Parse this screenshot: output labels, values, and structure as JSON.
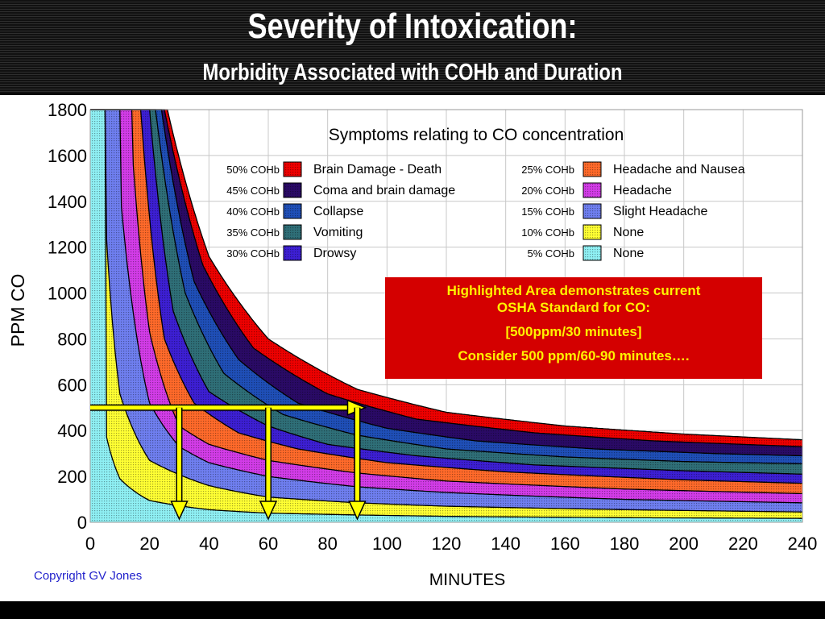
{
  "header": {
    "title": "Severity of Intoxication:",
    "subtitle": "Morbidity Associated with COHb and Duration"
  },
  "osha_box": {
    "line1": "Highlighted Area demonstrates current",
    "line2": "OSHA Standard for CO:",
    "line3": "[500ppm/30 minutes]",
    "line4": "Consider 500 ppm/60-90 minutes…."
  },
  "copyright": "Copyright GV Jones",
  "colors": {
    "box_background": "#d40000",
    "box_text": "#fff200",
    "arrow": "#ffff00",
    "header_background": "#1a1a1a"
  },
  "chart_data": {
    "type": "area",
    "title": "Symptoms relating to CO concentration",
    "xlabel": "MINUTES",
    "ylabel": "PPM CO",
    "xlim": [
      0,
      240
    ],
    "ylim": [
      0,
      1800
    ],
    "x_ticks": [
      "0",
      "20",
      "40",
      "60",
      "80",
      "100",
      "120",
      "140",
      "160",
      "180",
      "200",
      "220",
      "240"
    ],
    "y_ticks": [
      "0",
      "200",
      "400",
      "600",
      "800",
      "1000",
      "1200",
      "1400",
      "1600",
      "1800"
    ],
    "grid": true,
    "legend_left": [
      {
        "cohb": "50% COHb",
        "label": "Brain Damage - Death",
        "color": "#ee0000"
      },
      {
        "cohb": "45% COHb",
        "label": "Coma and brain damage",
        "color": "#2a0a66"
      },
      {
        "cohb": "40% COHb",
        "label": "Collapse",
        "color": "#1f4fb8"
      },
      {
        "cohb": "35% COHb",
        "label": "Vomiting",
        "color": "#2f6f78"
      },
      {
        "cohb": "30% COHb",
        "label": "Drowsy",
        "color": "#3d1fd4"
      }
    ],
    "legend_right": [
      {
        "cohb": "25% COHb",
        "label": "Headache and Nausea",
        "color": "#ff6a2a"
      },
      {
        "cohb": "20% COHb",
        "label": "Headache",
        "color": "#d33ce8"
      },
      {
        "cohb": "15% COHb",
        "label": "Slight Headache",
        "color": "#6f7ff0"
      },
      {
        "cohb": "10% COHb",
        "label": "None",
        "color": "#ffff33"
      },
      {
        "cohb": "5% COHb",
        "label": "None",
        "color": "#8ff0f4"
      }
    ],
    "series": [
      {
        "name": "5% COHb",
        "asymptote": 10,
        "points": [
          [
            5,
            400
          ],
          [
            10,
            190
          ],
          [
            20,
            95
          ],
          [
            40,
            55
          ],
          [
            60,
            40
          ],
          [
            90,
            32
          ],
          [
            120,
            26
          ],
          [
            180,
            20
          ],
          [
            240,
            17
          ]
        ],
        "color": "#8ff0f4"
      },
      {
        "name": "10% COHb",
        "asymptote": 25,
        "points": [
          [
            5,
            1350
          ],
          [
            10,
            560
          ],
          [
            20,
            270
          ],
          [
            40,
            160
          ],
          [
            60,
            110
          ],
          [
            90,
            85
          ],
          [
            120,
            70
          ],
          [
            180,
            55
          ],
          [
            240,
            45
          ]
        ],
        "color": "#ffff33"
      },
      {
        "name": "15% COHb",
        "asymptote": 45,
        "points": [
          [
            10,
            1450
          ],
          [
            20,
            520
          ],
          [
            30,
            330
          ],
          [
            40,
            260
          ],
          [
            60,
            200
          ],
          [
            90,
            155
          ],
          [
            120,
            130
          ],
          [
            180,
            100
          ],
          [
            240,
            85
          ]
        ],
        "color": "#6f7ff0"
      },
      {
        "name": "20% COHb",
        "asymptote": 70,
        "points": [
          [
            14,
            1650
          ],
          [
            20,
            830
          ],
          [
            30,
            420
          ],
          [
            40,
            340
          ],
          [
            60,
            270
          ],
          [
            90,
            215
          ],
          [
            120,
            180
          ],
          [
            180,
            145
          ],
          [
            240,
            125
          ]
        ],
        "color": "#d33ce8"
      },
      {
        "name": "25% COHb",
        "asymptote": 100,
        "points": [
          [
            17,
            1800
          ],
          [
            25,
            800
          ],
          [
            35,
            520
          ],
          [
            50,
            390
          ],
          [
            70,
            320
          ],
          [
            100,
            260
          ],
          [
            140,
            220
          ],
          [
            200,
            185
          ],
          [
            240,
            170
          ]
        ],
        "color": "#ff6a2a"
      },
      {
        "name": "30% COHb",
        "asymptote": 130,
        "points": [
          [
            20,
            1800
          ],
          [
            28,
            920
          ],
          [
            40,
            570
          ],
          [
            60,
            420
          ],
          [
            80,
            340
          ],
          [
            110,
            290
          ],
          [
            150,
            250
          ],
          [
            200,
            225
          ],
          [
            240,
            210
          ]
        ],
        "color": "#3d1fd4"
      },
      {
        "name": "35% COHb",
        "asymptote": 165,
        "points": [
          [
            22,
            1800
          ],
          [
            32,
            1000
          ],
          [
            45,
            650
          ],
          [
            65,
            470
          ],
          [
            90,
            380
          ],
          [
            120,
            320
          ],
          [
            160,
            285
          ],
          [
            200,
            265
          ],
          [
            240,
            255
          ]
        ],
        "color": "#2f6f78"
      },
      {
        "name": "40% COHb",
        "asymptote": 195,
        "points": [
          [
            24,
            1800
          ],
          [
            35,
            1050
          ],
          [
            50,
            710
          ],
          [
            70,
            520
          ],
          [
            100,
            410
          ],
          [
            130,
            355
          ],
          [
            170,
            320
          ],
          [
            210,
            300
          ],
          [
            240,
            290
          ]
        ],
        "color": "#1f4fb8"
      },
      {
        "name": "45% COHb",
        "asymptote": 225,
        "points": [
          [
            25,
            1800
          ],
          [
            38,
            1120
          ],
          [
            55,
            760
          ],
          [
            80,
            560
          ],
          [
            110,
            450
          ],
          [
            150,
            390
          ],
          [
            190,
            355
          ],
          [
            240,
            330
          ]
        ],
        "color": "#2a0a66"
      },
      {
        "name": "50% COHb",
        "asymptote": 260,
        "points": [
          [
            26,
            1800
          ],
          [
            40,
            1160
          ],
          [
            60,
            800
          ],
          [
            90,
            580
          ],
          [
            120,
            480
          ],
          [
            160,
            420
          ],
          [
            200,
            385
          ],
          [
            240,
            360
          ]
        ],
        "color": "#ee0000"
      }
    ],
    "highlight": {
      "ppm": 500,
      "minutes": [
        30,
        60,
        90
      ]
    }
  }
}
